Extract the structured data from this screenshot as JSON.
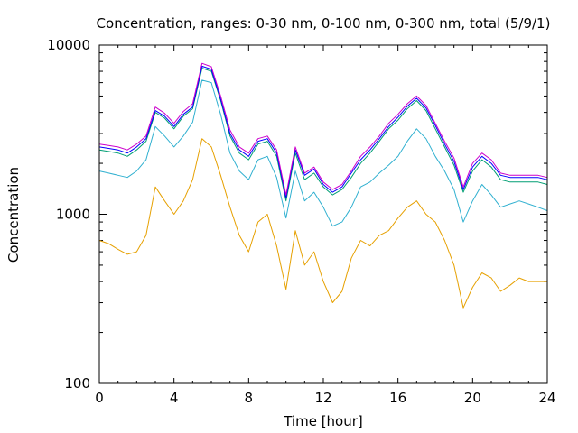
{
  "chart_data": {
    "type": "line",
    "title": "Concentration, ranges: 0-30 nm, 0-100 nm, 0-300 nm, total (5/9/1)",
    "xlabel": "Time [hour]",
    "ylabel": "Concentration",
    "xlim": [
      0,
      24
    ],
    "ylim": [
      100,
      10000
    ],
    "yscale": "log",
    "xticks": [
      0,
      4,
      8,
      12,
      16,
      20,
      24
    ],
    "xtick_labels": [
      "0",
      "4",
      "8",
      "12",
      "16",
      "20",
      "24"
    ],
    "yticks": [
      100,
      1000,
      10000
    ],
    "ytick_labels": [
      "100",
      "1000",
      "10000"
    ],
    "grid": false,
    "legend": "none",
    "x": [
      0,
      0.5,
      1,
      1.5,
      2,
      2.5,
      3,
      3.5,
      4,
      4.5,
      5,
      5.5,
      6,
      6.5,
      7,
      7.5,
      8,
      8.5,
      9,
      9.5,
      10,
      10.5,
      11,
      11.5,
      12,
      12.5,
      13,
      13.5,
      14,
      14.5,
      15,
      15.5,
      16,
      16.5,
      17,
      17.5,
      18,
      18.5,
      19,
      19.5,
      20,
      20.5,
      21,
      21.5,
      22,
      22.5,
      23,
      23.5,
      24
    ],
    "series": [
      {
        "color": "#e6a000",
        "values": [
          700,
          670,
          620,
          580,
          600,
          750,
          1450,
          1200,
          1000,
          1200,
          1600,
          2800,
          2500,
          1700,
          1100,
          750,
          600,
          900,
          1000,
          650,
          360,
          800,
          500,
          600,
          400,
          300,
          350,
          550,
          700,
          650,
          750,
          800,
          950,
          1100,
          1200,
          1000,
          900,
          700,
          500,
          280,
          370,
          450,
          420,
          350,
          380,
          420,
          400,
          400,
          400
        ]
      },
      {
        "color": "#30b0d0",
        "values": [
          1800,
          1750,
          1700,
          1650,
          1800,
          2100,
          3300,
          2900,
          2500,
          2900,
          3500,
          6200,
          6000,
          3900,
          2300,
          1800,
          1600,
          2100,
          2200,
          1650,
          950,
          1800,
          1200,
          1350,
          1100,
          850,
          900,
          1100,
          1450,
          1550,
          1750,
          1950,
          2200,
          2700,
          3200,
          2800,
          2200,
          1800,
          1400,
          900,
          1200,
          1500,
          1300,
          1100,
          1150,
          1200,
          1150,
          1100,
          1050
        ]
      },
      {
        "color": "#009e73",
        "values": [
          2400,
          2350,
          2300,
          2200,
          2400,
          2700,
          4000,
          3700,
          3200,
          3800,
          4200,
          7300,
          7000,
          4700,
          2900,
          2300,
          2100,
          2600,
          2700,
          2200,
          1200,
          2300,
          1600,
          1750,
          1450,
          1300,
          1400,
          1650,
          2000,
          2300,
          2700,
          3200,
          3600,
          4200,
          4700,
          4100,
          3200,
          2500,
          1950,
          1350,
          1800,
          2100,
          1900,
          1600,
          1550,
          1550,
          1550,
          1550,
          1500
        ]
      },
      {
        "color": "#0000ff",
        "values": [
          2500,
          2450,
          2400,
          2300,
          2500,
          2800,
          4100,
          3800,
          3300,
          3900,
          4300,
          7500,
          7200,
          4800,
          3000,
          2400,
          2200,
          2700,
          2800,
          2300,
          1250,
          2400,
          1700,
          1850,
          1500,
          1350,
          1450,
          1750,
          2100,
          2400,
          2800,
          3300,
          3750,
          4350,
          4850,
          4250,
          3350,
          2600,
          2050,
          1400,
          1900,
          2200,
          2000,
          1700,
          1650,
          1650,
          1650,
          1650,
          1600
        ]
      },
      {
        "color": "#cc00cc",
        "values": [
          2600,
          2550,
          2500,
          2400,
          2600,
          2900,
          4300,
          3950,
          3450,
          4050,
          4500,
          7800,
          7450,
          5000,
          3150,
          2500,
          2300,
          2800,
          2900,
          2400,
          1300,
          2500,
          1750,
          1900,
          1550,
          1400,
          1500,
          1800,
          2200,
          2500,
          2900,
          3450,
          3900,
          4500,
          5000,
          4400,
          3450,
          2700,
          2150,
          1450,
          2000,
          2300,
          2100,
          1750,
          1700,
          1700,
          1700,
          1700,
          1650
        ]
      }
    ]
  }
}
